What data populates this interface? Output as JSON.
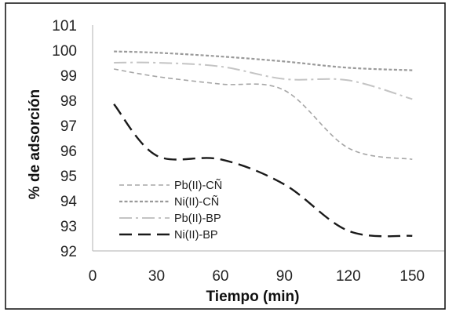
{
  "chart_data": {
    "type": "line",
    "xlabel": "Tiempo (min)",
    "ylabel": "% de adsorción",
    "xlim": [
      0,
      165
    ],
    "ylim": [
      92,
      101
    ],
    "x_ticks": [
      "0",
      "30",
      "60",
      "90",
      "120",
      "150"
    ],
    "y_ticks": [
      "92",
      "93",
      "94",
      "95",
      "96",
      "97",
      "98",
      "99",
      "100",
      "101"
    ],
    "grid": false,
    "legend_position": "bottom-left",
    "series": [
      {
        "name": "Pb(II)-CÑ",
        "style": "short-dash",
        "color": "#a6a6a6",
        "x": [
          10,
          30,
          60,
          90,
          120,
          150
        ],
        "y": [
          99.25,
          98.95,
          98.65,
          98.4,
          96.1,
          95.65
        ]
      },
      {
        "name": "Ni(II)-CÑ",
        "style": "dense-dash",
        "color": "#9a9a9a",
        "x": [
          10,
          30,
          60,
          90,
          120,
          150
        ],
        "y": [
          99.95,
          99.9,
          99.75,
          99.55,
          99.3,
          99.2
        ]
      },
      {
        "name": "Pb(II)-BP",
        "style": "dash-dot",
        "color": "#c4c4c4",
        "x": [
          10,
          30,
          60,
          90,
          120,
          150
        ],
        "y": [
          99.5,
          99.5,
          99.35,
          98.85,
          98.8,
          98.05
        ]
      },
      {
        "name": "Ni(II)-BP",
        "style": "long-dash",
        "color": "#1a1a1a",
        "x": [
          10,
          30,
          60,
          90,
          120,
          150
        ],
        "y": [
          97.85,
          95.8,
          95.65,
          94.65,
          92.8,
          92.6
        ]
      }
    ]
  }
}
